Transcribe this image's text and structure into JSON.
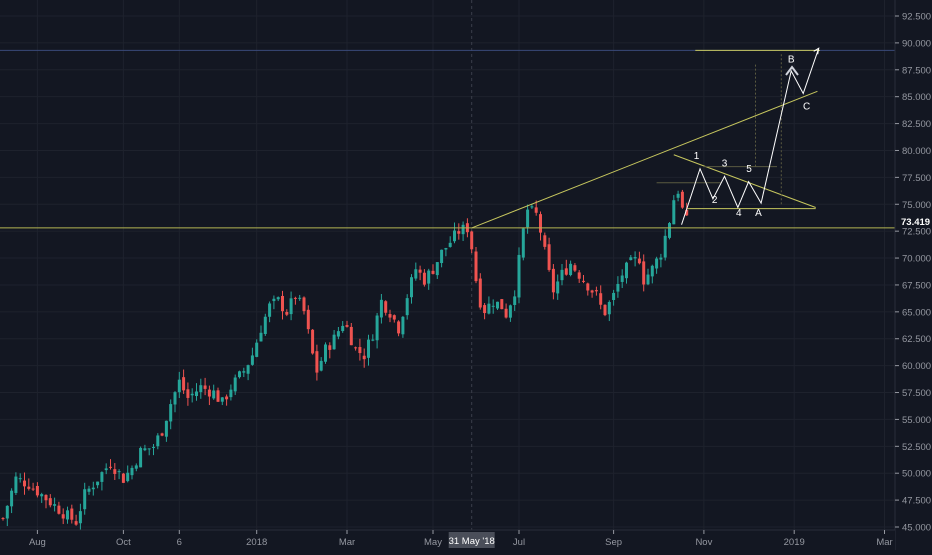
{
  "colors": {
    "background": "#131722",
    "grid": "#1e222d",
    "axis_line": "#2a2e39",
    "tick_text": "#9598a1",
    "up": "#26a69a",
    "down": "#ef5350",
    "trendline": "#c6c65e",
    "price_line": "#b5b552",
    "wave": "#ffffff",
    "crosshair_label_bg": "#4a4e59",
    "price_label_bg": "#131722"
  },
  "chart_data": {
    "type": "candlestick",
    "y_axis": {
      "min": 45,
      "max": 92.5,
      "step": 2.5,
      "tick_labels": [
        "45.000",
        "47.500",
        "50.000",
        "52.500",
        "55.000",
        "57.500",
        "60.000",
        "62.500",
        "65.000",
        "67.500",
        "70.000",
        "72.500",
        "75.000",
        "77.500",
        "80.000",
        "82.500",
        "85.000",
        "87.500",
        "90.000",
        "92.500"
      ]
    },
    "x_axis": {
      "tick_labels": [
        "Aug",
        "Oct",
        "6",
        "2018",
        "Mar",
        "May",
        "Jul",
        "Sep",
        "Nov",
        "2019",
        "Mar"
      ],
      "tick_positions_index": [
        8,
        28,
        41,
        59,
        80,
        100,
        120,
        142,
        163,
        184,
        205
      ],
      "crosshair_label": "31 May '18",
      "crosshair_index": 109
    },
    "last_price": 73.419,
    "last_price_label": "73.419",
    "horizontal_line_value": 72.8,
    "top_line_value": 89.3,
    "series_close_path": [
      [
        0,
        45.8
      ],
      [
        3,
        49.5
      ],
      [
        6,
        49.0
      ],
      [
        9,
        48.0
      ],
      [
        12,
        47.0
      ],
      [
        15,
        46.0
      ],
      [
        17,
        45.5
      ],
      [
        19,
        48.0
      ],
      [
        22,
        49.5
      ],
      [
        25,
        51.0
      ],
      [
        28,
        49.5
      ],
      [
        30,
        50.5
      ],
      [
        32,
        52.0
      ],
      [
        35,
        52.5
      ],
      [
        37,
        54.0
      ],
      [
        39,
        56.5
      ],
      [
        41,
        58.5
      ],
      [
        43,
        57.0
      ],
      [
        46,
        58.0
      ],
      [
        49,
        57.5
      ],
      [
        51,
        56.5
      ],
      [
        53,
        58.0
      ],
      [
        56,
        59.5
      ],
      [
        58,
        61.0
      ],
      [
        60,
        63.5
      ],
      [
        62,
        65.5
      ],
      [
        64,
        66.0
      ],
      [
        66,
        65.0
      ],
      [
        68,
        66.5
      ],
      [
        70,
        65.0
      ],
      [
        72,
        61.0
      ],
      [
        73,
        59.5
      ],
      [
        75,
        61.5
      ],
      [
        77,
        62.5
      ],
      [
        79,
        64.0
      ],
      [
        80,
        63.5
      ],
      [
        82,
        61.5
      ],
      [
        84,
        61.0
      ],
      [
        86,
        63.0
      ],
      [
        88,
        66.0
      ],
      [
        90,
        65.0
      ],
      [
        92,
        63.5
      ],
      [
        94,
        66.5
      ],
      [
        96,
        69.0
      ],
      [
        98,
        68.0
      ],
      [
        100,
        69.0
      ],
      [
        102,
        70.5
      ],
      [
        104,
        71.5
      ],
      [
        106,
        72.5
      ],
      [
        108,
        72.8
      ],
      [
        109,
        71.0
      ],
      [
        110,
        68.0
      ],
      [
        111,
        66.0
      ],
      [
        112,
        65.2
      ],
      [
        114,
        66.0
      ],
      [
        116,
        65.5
      ],
      [
        117,
        64.8
      ],
      [
        119,
        67.0
      ],
      [
        121,
        72.5
      ],
      [
        122,
        74.5
      ],
      [
        124,
        74.0
      ],
      [
        125,
        72.5
      ],
      [
        126,
        70.5
      ],
      [
        127,
        68.5
      ],
      [
        128,
        67.0
      ],
      [
        130,
        68.5
      ],
      [
        132,
        69.5
      ],
      [
        134,
        68.5
      ],
      [
        136,
        67.5
      ],
      [
        138,
        66.5
      ],
      [
        139,
        65.5
      ],
      [
        140,
        65.0
      ],
      [
        142,
        66.5
      ],
      [
        144,
        68.5
      ],
      [
        146,
        69.5
      ],
      [
        148,
        70.0
      ],
      [
        149,
        68.0
      ],
      [
        151,
        69.0
      ],
      [
        153,
        70.5
      ],
      [
        154,
        72.0
      ],
      [
        155,
        73.5
      ],
      [
        156,
        75.5
      ],
      [
        157,
        76.3
      ],
      [
        158,
        74.5
      ],
      [
        159,
        73.4
      ]
    ],
    "annotations": [
      {
        "text": "1",
        "x": 161.3,
        "y": 79.2
      },
      {
        "text": "2",
        "x": 165.5,
        "y": 75.1
      },
      {
        "text": "3",
        "x": 167.8,
        "y": 78.5
      },
      {
        "text": "4",
        "x": 171.1,
        "y": 73.9
      },
      {
        "text": "5",
        "x": 173.5,
        "y": 78.0
      },
      {
        "text": "A",
        "x": 175.7,
        "y": 73.9
      },
      {
        "text": "B",
        "x": 183.3,
        "y": 88.2
      },
      {
        "text": "C",
        "x": 186.9,
        "y": 83.8
      }
    ],
    "wave_path": [
      [
        157.8,
        73.1
      ],
      [
        162.1,
        78.3
      ],
      [
        165.1,
        75.5
      ],
      [
        167.8,
        77.6
      ],
      [
        170.9,
        74.7
      ],
      [
        173.4,
        77.1
      ],
      [
        176.3,
        75.1
      ],
      [
        183.3,
        87.4
      ],
      [
        186.1,
        85.3
      ],
      [
        189.7,
        89.5
      ]
    ],
    "trendlines": [
      {
        "from": [
          109,
          72.8
        ],
        "to": [
          189.4,
          85.5
        ]
      },
      {
        "from": [
          156.0,
          79.6
        ],
        "to": [
          189.0,
          74.7
        ]
      },
      {
        "from": [
          159.2,
          74.6
        ],
        "to": [
          189.0,
          74.6
        ]
      }
    ]
  }
}
